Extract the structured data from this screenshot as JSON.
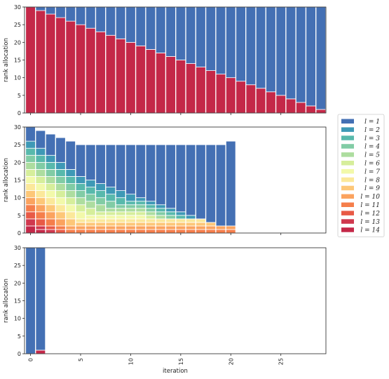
{
  "chart_data": {
    "type": "bar",
    "stacked": true,
    "shared_x": [
      0,
      1,
      2,
      3,
      4,
      5,
      6,
      7,
      8,
      9,
      10,
      11,
      12,
      13,
      14,
      15,
      16,
      17,
      18,
      19,
      20,
      21,
      22,
      23,
      24,
      25,
      26,
      27,
      28,
      29
    ],
    "xticks": [
      0,
      5,
      10,
      15,
      20,
      25
    ],
    "xlabel": "iteration",
    "xlim": [
      -0.6,
      29.5
    ],
    "legend": {
      "placement": "right",
      "entries": [
        "l = 1",
        "l = 2",
        "l = 3",
        "l = 4",
        "l = 5",
        "l = 6",
        "l = 7",
        "l = 8",
        "l = 9",
        "l = 10",
        "l = 11",
        "l = 12",
        "l = 13",
        "l = 14"
      ],
      "colors": [
        "#4470b4",
        "#3e99b6",
        "#58b9ac",
        "#81cca5",
        "#addd9f",
        "#d6ee9b",
        "#f2f9aa",
        "#fbe89a",
        "#fdc778",
        "#fba35f",
        "#f57e4b",
        "#e85a46",
        "#d0384e",
        "#c42848"
      ]
    },
    "panels": [
      {
        "ylabel": "rank allocation",
        "ylim": [
          0,
          30
        ],
        "yticks": [
          0,
          5,
          10,
          15,
          20,
          25,
          30
        ],
        "x": [
          0,
          1,
          2,
          3,
          4,
          5,
          6,
          7,
          8,
          9,
          10,
          11,
          12,
          13,
          14,
          15,
          16,
          17,
          18,
          19,
          20,
          21,
          22,
          23,
          24,
          25,
          26,
          27,
          28,
          29
        ],
        "stacks": [
          [
            0,
            0,
            0,
            0,
            0,
            0,
            0,
            0,
            0,
            0,
            0,
            0,
            0,
            30
          ],
          [
            1,
            0,
            0,
            0,
            0,
            0,
            0,
            0,
            0,
            0,
            0,
            0,
            0,
            29
          ],
          [
            2,
            0,
            0,
            0,
            0,
            0,
            0,
            0,
            0,
            0,
            0,
            0,
            0,
            28
          ],
          [
            3,
            0,
            0,
            0,
            0,
            0,
            0,
            0,
            0,
            0,
            0,
            0,
            0,
            27
          ],
          [
            4,
            0,
            0,
            0,
            0,
            0,
            0,
            0,
            0,
            0,
            0,
            0,
            0,
            26
          ],
          [
            5,
            0,
            0,
            0,
            0,
            0,
            0,
            0,
            0,
            0,
            0,
            0,
            0,
            25
          ],
          [
            6,
            0,
            0,
            0,
            0,
            0,
            0,
            0,
            0,
            0,
            0,
            0,
            0,
            24
          ],
          [
            7,
            0,
            0,
            0,
            0,
            0,
            0,
            0,
            0,
            0,
            0,
            0,
            0,
            23
          ],
          [
            8,
            0,
            0,
            0,
            0,
            0,
            0,
            0,
            0,
            0,
            0,
            0,
            0,
            22
          ],
          [
            9,
            0,
            0,
            0,
            0,
            0,
            0,
            0,
            0,
            0,
            0,
            0,
            0,
            21
          ],
          [
            10,
            0,
            0,
            0,
            0,
            0,
            0,
            0,
            0,
            0,
            0,
            0,
            0,
            20
          ],
          [
            11,
            0,
            0,
            0,
            0,
            0,
            0,
            0,
            0,
            0,
            0,
            0,
            0,
            19
          ],
          [
            12,
            0,
            0,
            0,
            0,
            0,
            0,
            0,
            0,
            0,
            0,
            0,
            0,
            18
          ],
          [
            13,
            0,
            0,
            0,
            0,
            0,
            0,
            0,
            0,
            0,
            0,
            0,
            0,
            17
          ],
          [
            14,
            0,
            0,
            0,
            0,
            0,
            0,
            0,
            0,
            0,
            0,
            0,
            0,
            16
          ],
          [
            15,
            0,
            0,
            0,
            0,
            0,
            0,
            0,
            0,
            0,
            0,
            0,
            0,
            15
          ],
          [
            16,
            0,
            0,
            0,
            0,
            0,
            0,
            0,
            0,
            0,
            0,
            0,
            0,
            14
          ],
          [
            17,
            0,
            0,
            0,
            0,
            0,
            0,
            0,
            0,
            0,
            0,
            0,
            0,
            13
          ],
          [
            18,
            0,
            0,
            0,
            0,
            0,
            0,
            0,
            0,
            0,
            0,
            0,
            0,
            12
          ],
          [
            19,
            0,
            0,
            0,
            0,
            0,
            0,
            0,
            0,
            0,
            0,
            0,
            0,
            11
          ],
          [
            20,
            0,
            0,
            0,
            0,
            0,
            0,
            0,
            0,
            0,
            0,
            0,
            0,
            10
          ],
          [
            21,
            0,
            0,
            0,
            0,
            0,
            0,
            0,
            0,
            0,
            0,
            0,
            0,
            9
          ],
          [
            22,
            0,
            0,
            0,
            0,
            0,
            0,
            0,
            0,
            0,
            0,
            0,
            0,
            8
          ],
          [
            23,
            0,
            0,
            0,
            0,
            0,
            0,
            0,
            0,
            0,
            0,
            0,
            0,
            7
          ],
          [
            24,
            0,
            0,
            0,
            0,
            0,
            0,
            0,
            0,
            0,
            0,
            0,
            0,
            6
          ],
          [
            25,
            0,
            0,
            0,
            0,
            0,
            0,
            0,
            0,
            0,
            0,
            0,
            0,
            5
          ],
          [
            26,
            0,
            0,
            0,
            0,
            0,
            0,
            0,
            0,
            0,
            0,
            0,
            0,
            4
          ],
          [
            27,
            0,
            0,
            0,
            0,
            0,
            0,
            0,
            0,
            0,
            0,
            0,
            0,
            3
          ],
          [
            28,
            0,
            0,
            0,
            0,
            0,
            0,
            0,
            0,
            0,
            0,
            0,
            0,
            2
          ],
          [
            29,
            0,
            0,
            0,
            0,
            0,
            0,
            0,
            0,
            0,
            0,
            0,
            0,
            1
          ]
        ]
      },
      {
        "ylabel": "rank allocation",
        "ylim": [
          0,
          30
        ],
        "yticks": [
          0,
          5,
          10,
          15,
          20,
          25,
          30
        ],
        "x": [
          0,
          1,
          2,
          3,
          4,
          5,
          6,
          7,
          8,
          9,
          10,
          11,
          12,
          13,
          14,
          15,
          16,
          17,
          18,
          19,
          20
        ],
        "stacks": [
          [
            4,
            2,
            2,
            2,
            2,
            2,
            2,
            2,
            2,
            2,
            2,
            2,
            2,
            2
          ],
          [
            5,
            2,
            2,
            2,
            2,
            2,
            2,
            2,
            2,
            2,
            2,
            2,
            1,
            1
          ],
          [
            6,
            2,
            2,
            2,
            2,
            2,
            2,
            2,
            2,
            2,
            2,
            1,
            1,
            0
          ],
          [
            7,
            2,
            2,
            2,
            2,
            2,
            2,
            2,
            2,
            2,
            1,
            1,
            0,
            0
          ],
          [
            8,
            2,
            2,
            2,
            2,
            2,
            2,
            2,
            2,
            1,
            1,
            0,
            0,
            0
          ],
          [
            9,
            2,
            2,
            2,
            2,
            2,
            2,
            1,
            1,
            1,
            1,
            0,
            0,
            0
          ],
          [
            10,
            2,
            2,
            2,
            2,
            2,
            1,
            1,
            1,
            1,
            1,
            0,
            0,
            0
          ],
          [
            11,
            2,
            2,
            2,
            2,
            1,
            1,
            1,
            1,
            1,
            1,
            0,
            0,
            0
          ],
          [
            12,
            2,
            2,
            2,
            1,
            1,
            1,
            1,
            1,
            1,
            1,
            0,
            0,
            0
          ],
          [
            13,
            2,
            2,
            1,
            1,
            1,
            1,
            1,
            1,
            1,
            1,
            0,
            0,
            0
          ],
          [
            14,
            2,
            1,
            1,
            1,
            1,
            1,
            1,
            1,
            1,
            1,
            0,
            0,
            0
          ],
          [
            15,
            1,
            1,
            1,
            1,
            1,
            1,
            1,
            1,
            1,
            1,
            0,
            0,
            0
          ],
          [
            16,
            1,
            1,
            1,
            1,
            1,
            0,
            1,
            1,
            1,
            1,
            0,
            0,
            0
          ],
          [
            17,
            1,
            1,
            1,
            1,
            0,
            0,
            1,
            1,
            1,
            1,
            0,
            0,
            0
          ],
          [
            18,
            1,
            1,
            1,
            0,
            0,
            0,
            1,
            1,
            1,
            1,
            0,
            0,
            0
          ],
          [
            19,
            1,
            1,
            0,
            0,
            0,
            0,
            1,
            1,
            1,
            1,
            0,
            0,
            0
          ],
          [
            20,
            1,
            0,
            0,
            0,
            0,
            0,
            1,
            1,
            1,
            1,
            0,
            0,
            0
          ],
          [
            21,
            0,
            0,
            0,
            0,
            0,
            0,
            1,
            1,
            1,
            1,
            0,
            0,
            0
          ],
          [
            22,
            0,
            0,
            0,
            0,
            0,
            0,
            0,
            1,
            1,
            1,
            0,
            0,
            0
          ],
          [
            23,
            0,
            0,
            0,
            0,
            0,
            0,
            0,
            0,
            1,
            1,
            0,
            0,
            0
          ],
          [
            24,
            0,
            0,
            0,
            0,
            0,
            0,
            0,
            0,
            1,
            1,
            0,
            0,
            0
          ]
        ]
      },
      {
        "ylabel": "rank allocation",
        "ylim": [
          0,
          30
        ],
        "yticks": [
          0,
          5,
          10,
          15,
          20,
          25,
          30
        ],
        "x": [
          0,
          1
        ],
        "stacks": [
          [
            30,
            0,
            0,
            0,
            0,
            0,
            0,
            0,
            0,
            0,
            0,
            0,
            0,
            0
          ],
          [
            29,
            0,
            0,
            0,
            0,
            0,
            0,
            0,
            0,
            0,
            0,
            0,
            0,
            1
          ]
        ]
      }
    ]
  }
}
